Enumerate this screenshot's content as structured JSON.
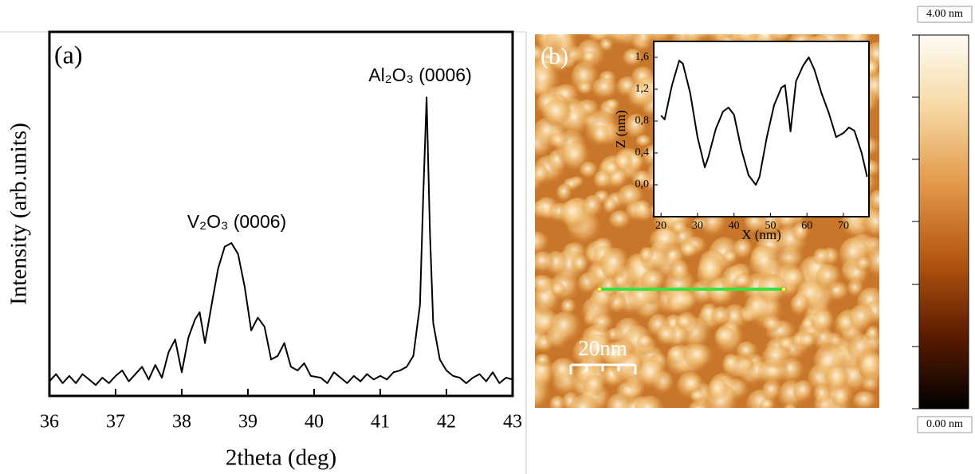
{
  "chart_data": [
    {
      "type": "line",
      "panel_label": "(a)",
      "xlabel": "2theta (deg)",
      "ylabel": "Intensity (arb.units)",
      "annotations": [
        "V₂O₃ (0006)",
        "Al₂O₃ (0006)"
      ],
      "xlim": [
        36,
        43
      ],
      "xticks": [
        36,
        37,
        38,
        39,
        40,
        41,
        42,
        43
      ],
      "ylim": [
        0,
        100
      ],
      "color": "#000000",
      "x": [
        36.0,
        36.1,
        36.2,
        36.3,
        36.4,
        36.5,
        36.6,
        36.7,
        36.8,
        36.9,
        37.0,
        37.1,
        37.2,
        37.3,
        37.4,
        37.5,
        37.6,
        37.7,
        37.8,
        37.9,
        38.0,
        38.1,
        38.2,
        38.27,
        38.35,
        38.45,
        38.55,
        38.65,
        38.75,
        38.85,
        38.95,
        39.05,
        39.15,
        39.25,
        39.35,
        39.45,
        39.55,
        39.65,
        39.75,
        39.85,
        39.95,
        40.1,
        40.2,
        40.3,
        40.4,
        40.5,
        40.6,
        40.7,
        40.8,
        40.9,
        41.0,
        41.1,
        41.2,
        41.3,
        41.4,
        41.5,
        41.6,
        41.65,
        41.7,
        41.75,
        41.8,
        41.9,
        42.0,
        42.1,
        42.2,
        42.3,
        42.4,
        42.5,
        42.6,
        42.7,
        42.8,
        42.9,
        43.0
      ],
      "values": [
        4,
        6,
        3.5,
        5.5,
        3.5,
        6,
        4.5,
        3,
        5,
        3.5,
        5.5,
        7,
        4,
        6,
        8,
        4.5,
        8.5,
        5,
        12,
        15.5,
        6.5,
        16,
        21,
        23,
        14.5,
        25,
        35,
        41,
        42,
        39,
        30,
        18,
        21.5,
        19,
        10,
        11,
        14.5,
        8,
        7,
        9,
        5.5,
        5,
        3.5,
        6.5,
        5,
        3.5,
        5.5,
        4,
        6,
        4.5,
        5.5,
        4.5,
        6.5,
        7,
        8,
        11,
        25,
        55,
        82,
        45,
        20,
        10,
        7,
        5.5,
        5,
        3.5,
        5,
        6,
        4,
        6.5,
        3.5,
        5,
        4.5
      ]
    },
    {
      "type": "line",
      "xlabel": "X (nm)",
      "ylabel": "Z (nm)",
      "xlim": [
        18,
        77
      ],
      "xticks": [
        20,
        30,
        40,
        50,
        60,
        70
      ],
      "ylim": [
        -0.4,
        1.8
      ],
      "yticks": [
        {
          "value": 0,
          "label": "0,0"
        },
        {
          "value": 0.4,
          "label": "0,4"
        },
        {
          "value": 0.8,
          "label": "0,8"
        },
        {
          "value": 1.2,
          "label": "1,2"
        },
        {
          "value": 1.6,
          "label": "1,6"
        }
      ],
      "color": "#000000",
      "x": [
        20,
        21,
        23,
        25,
        26,
        28,
        30,
        32,
        33,
        35,
        37,
        38.5,
        40,
        42,
        44,
        46,
        47,
        49,
        51,
        53,
        54,
        55.5,
        57,
        59,
        60.5,
        62,
        64,
        66,
        68,
        70,
        71.5,
        73,
        75,
        76.5
      ],
      "values": [
        0.87,
        0.82,
        1.25,
        1.56,
        1.52,
        1.15,
        0.6,
        0.22,
        0.35,
        0.7,
        0.92,
        0.97,
        0.88,
        0.45,
        0.12,
        0.0,
        0.1,
        0.6,
        1.0,
        1.22,
        1.25,
        0.67,
        1.3,
        1.5,
        1.6,
        1.45,
        1.15,
        0.9,
        0.6,
        0.65,
        0.72,
        0.68,
        0.4,
        0.1
      ]
    },
    {
      "type": "image",
      "panel_label": "(b)",
      "scale_bar": "20nm"
    },
    {
      "type": "colorbar",
      "ylim": [
        0,
        4
      ],
      "yticks": [
        {
          "value": 4,
          "label": "4.00 nm"
        },
        {
          "value": 0,
          "label": "0.00 nm"
        }
      ],
      "colors": [
        "#000000",
        "#5e1c00",
        "#b55712",
        "#e29848",
        "#f6d7a2",
        "#fffcf4"
      ]
    }
  ]
}
